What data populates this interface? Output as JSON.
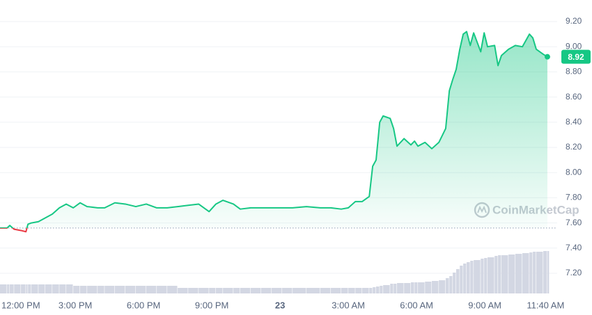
{
  "chart_data": {
    "type": "line",
    "watermark": "CoinMarketCap",
    "x": [
      -0.31,
      0,
      0.12,
      0.31,
      0.61,
      0.83,
      0.92,
      1.07,
      1.38,
      1.68,
      1.99,
      2.3,
      2.6,
      2.91,
      3.21,
      3.52,
      3.98,
      4.29,
      4.74,
      5.2,
      5.66,
      6.12,
      6.58,
      7.04,
      7.5,
      7.96,
      8.42,
      8.88,
      9.18,
      9.49,
      9.95,
      10.25,
      10.71,
      11.17,
      11.63,
      12.09,
      12.55,
      13.16,
      13.77,
      14.23,
      14.69,
      15.0,
      15.31,
      15.61,
      15.92,
      16.07,
      16.22,
      16.38,
      16.53,
      16.84,
      16.99,
      17.14,
      17.45,
      17.75,
      17.91,
      18.06,
      18.37,
      18.67,
      18.98,
      19.28,
      19.44,
      19.59,
      19.74,
      19.9,
      20.05,
      20.2,
      20.36,
      20.51,
      20.82,
      20.97,
      21.12,
      21.43,
      21.58,
      21.73,
      22.04,
      22.34,
      22.65,
      22.96,
      23.11,
      23.26,
      23.57,
      23.75
    ],
    "values": [
      7.56,
      7.56,
      7.58,
      7.55,
      7.54,
      7.53,
      7.59,
      7.6,
      7.61,
      7.64,
      7.67,
      7.72,
      7.75,
      7.72,
      7.76,
      7.73,
      7.72,
      7.72,
      7.76,
      7.75,
      7.73,
      7.75,
      7.72,
      7.72,
      7.73,
      7.74,
      7.75,
      7.69,
      7.75,
      7.78,
      7.75,
      7.71,
      7.72,
      7.72,
      7.72,
      7.72,
      7.72,
      7.73,
      7.72,
      7.72,
      7.71,
      7.72,
      7.77,
      7.77,
      7.81,
      8.05,
      8.1,
      8.4,
      8.45,
      8.43,
      8.35,
      8.21,
      8.27,
      8.22,
      8.25,
      8.21,
      8.24,
      8.19,
      8.24,
      8.35,
      8.65,
      8.74,
      8.82,
      8.98,
      9.1,
      9.12,
      9.01,
      9.11,
      8.96,
      9.11,
      9.0,
      9.01,
      8.85,
      8.93,
      8.98,
      9.01,
      9.0,
      9.1,
      9.07,
      8.98,
      8.94,
      8.92
    ],
    "volume": [
      13,
      13,
      13,
      13,
      13,
      13,
      13,
      13,
      13,
      13,
      13,
      13,
      13,
      11,
      11,
      11,
      11,
      11,
      11,
      11,
      11,
      11,
      11,
      11,
      8,
      8,
      8,
      8,
      8,
      8,
      8,
      8,
      8,
      8,
      8,
      8,
      8,
      8,
      8,
      8,
      8,
      8,
      8,
      8,
      8,
      9,
      10,
      11,
      12,
      14,
      14,
      15,
      15,
      16,
      16,
      16,
      17,
      18,
      19,
      22,
      25,
      30,
      35,
      40,
      43,
      45,
      47,
      48,
      50,
      51,
      52,
      54,
      55,
      55,
      56,
      57,
      58,
      59,
      60,
      60,
      61,
      61
    ],
    "reference": 7.56,
    "color": "#16c784",
    "down_color": "#ea3943",
    "volume_color": "#d3d7e3",
    "xlim": [
      -0.31,
      24.18
    ],
    "ylim": [
      7.2,
      9.2
    ],
    "xticks": [
      {
        "value": 0,
        "label": "12:00 PM"
      },
      {
        "value": 3,
        "label": "3:00 PM"
      },
      {
        "value": 6,
        "label": "6:00 PM"
      },
      {
        "value": 9,
        "label": "9:00 PM"
      },
      {
        "value": 12,
        "label": "23"
      },
      {
        "value": 15,
        "label": "3:00 AM"
      },
      {
        "value": 18,
        "label": "6:00 AM"
      },
      {
        "value": 21,
        "label": "9:00 AM"
      },
      {
        "value": 23.67,
        "label": "11:40 AM"
      }
    ],
    "yticks": [
      {
        "value": 7.2,
        "label": "7.20"
      },
      {
        "value": 7.4,
        "label": "7.40"
      },
      {
        "value": 7.6,
        "label": "7.60"
      },
      {
        "value": 7.8,
        "label": "7.80"
      },
      {
        "value": 8.0,
        "label": "8.00"
      },
      {
        "value": 8.2,
        "label": "8.20"
      },
      {
        "value": 8.4,
        "label": "8.40"
      },
      {
        "value": 8.6,
        "label": "8.60"
      },
      {
        "value": 8.8,
        "label": "8.80"
      },
      {
        "value": 9.0,
        "label": "9.00"
      },
      {
        "value": 9.2,
        "label": "9.20"
      }
    ],
    "grid": true
  }
}
